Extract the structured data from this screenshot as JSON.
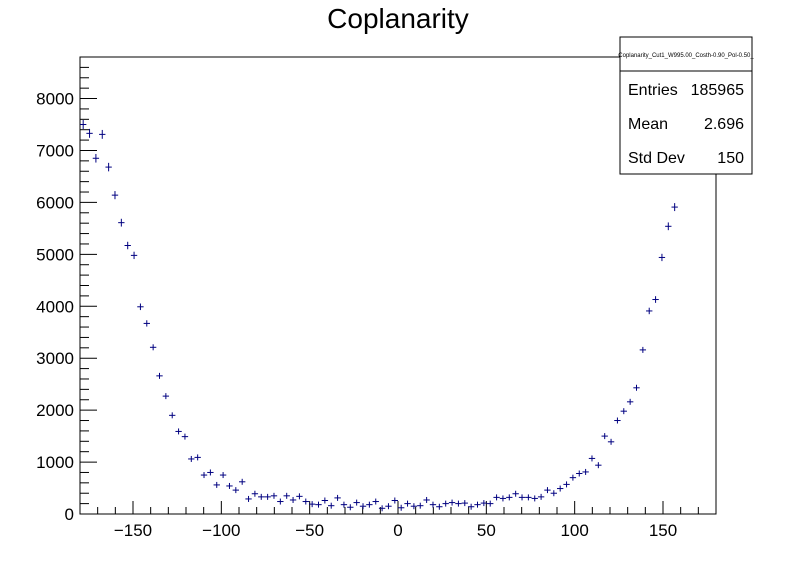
{
  "chart_data": {
    "type": "scatter",
    "title": "Coplanarity",
    "xlabel": "",
    "ylabel": "",
    "xlim": [
      -180,
      180
    ],
    "ylim": [
      0,
      8800
    ],
    "bin_width": 3.6,
    "x_ticks": [
      -150,
      -100,
      -50,
      0,
      50,
      100,
      150
    ],
    "x_tick_labels": [
      "−150",
      "−100",
      "−50",
      "0",
      "50",
      "100",
      "150"
    ],
    "y_ticks": [
      0,
      1000,
      2000,
      3000,
      4000,
      5000,
      6000,
      7000,
      8000
    ],
    "y_tick_labels": [
      "0",
      "1000",
      "2000",
      "3000",
      "4000",
      "5000",
      "6000",
      "7000",
      "8000"
    ],
    "marker_color": "#000080",
    "series": [
      {
        "x": [
          -178.2,
          -174.6,
          -171.0,
          -167.4,
          -163.8,
          -160.2,
          -156.6,
          -153.0,
          -149.4,
          -145.8,
          -142.2,
          -138.6,
          -135.0,
          -131.4,
          -127.8,
          -124.2,
          -120.6,
          -117.0,
          -113.4,
          -109.8,
          -106.2,
          -102.6,
          -99.0,
          -95.4,
          -91.8,
          -88.2,
          -84.6,
          -81.0,
          -77.4,
          -73.8,
          -70.2,
          -66.6,
          -63.0,
          -59.4,
          -55.8,
          -52.2,
          -48.6,
          -45.0,
          -41.4,
          -37.8,
          -34.2,
          -30.6,
          -27.0,
          -23.4,
          -19.8,
          -16.2,
          -12.6,
          -9.0,
          -5.4,
          -1.8,
          1.8,
          5.4,
          9.0,
          12.6,
          16.2,
          19.8,
          23.4,
          27.0,
          30.6,
          34.2,
          37.8,
          41.4,
          45.0,
          48.6,
          52.2,
          55.8,
          59.4,
          63.0,
          66.6,
          70.2,
          73.8,
          77.4,
          81.0,
          84.6,
          88.2,
          91.8,
          95.4,
          99.0,
          102.6,
          106.2,
          109.8,
          113.4,
          117.0,
          120.6,
          124.2,
          127.8,
          131.4,
          135.0,
          138.6,
          142.2,
          145.8,
          149.4,
          153.0,
          156.6
        ],
        "y": [
          7500,
          7330,
          6850,
          7310,
          6680,
          6140,
          5610,
          5170,
          4980,
          3990,
          3670,
          3210,
          2660,
          2270,
          1900,
          1590,
          1490,
          1060,
          1090,
          750,
          800,
          560,
          750,
          540,
          460,
          620,
          290,
          390,
          330,
          330,
          350,
          240,
          350,
          270,
          340,
          240,
          190,
          180,
          260,
          160,
          310,
          180,
          130,
          220,
          150,
          180,
          240,
          110,
          150,
          260,
          120,
          200,
          150,
          160,
          270,
          180,
          140,
          200,
          220,
          200,
          210,
          140,
          180,
          210,
          200,
          320,
          300,
          320,
          390,
          320,
          320,
          300,
          330,
          460,
          400,
          490,
          570,
          700,
          780,
          810,
          1070,
          940,
          1500,
          1390,
          1800,
          1980,
          2160,
          2430,
          3160,
          3910,
          4130,
          4940,
          5540,
          5910
        ]
      }
    ],
    "stats": {
      "name": "Coplanarity_Cut1_W995.00_Costh-0.90_Pol-0.50_",
      "rows": [
        {
          "label": "Entries",
          "value": "185965"
        },
        {
          "label": "Mean",
          "value": "2.696"
        },
        {
          "label": "Std Dev",
          "value": "150"
        }
      ]
    }
  }
}
